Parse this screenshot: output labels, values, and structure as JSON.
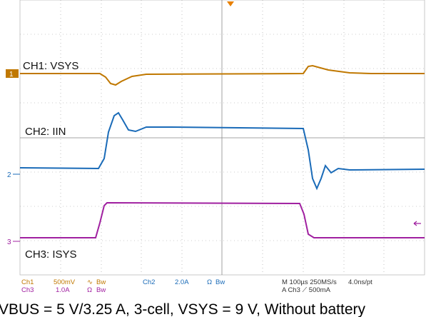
{
  "trace_labels": [
    "CH1: VSYS",
    "CH2: IIN",
    "CH3: ISYS"
  ],
  "channel_markers": [
    "1",
    "2",
    "3"
  ],
  "status": {
    "ch1": {
      "name": "Ch1",
      "scale": "500mV",
      "coupling": "∿",
      "bw": "Bw"
    },
    "ch2": {
      "name": "Ch2",
      "scale": "2.0A",
      "coupling": "Ω",
      "bw": "Bw"
    },
    "ch3": {
      "name": "Ch3",
      "scale": "1.0A",
      "coupling": "Ω",
      "bw": "Bw"
    },
    "timebase": "M 100µs 250MS/s",
    "resolution": "4.0ns/pt",
    "trigger": "A Ch3 ⟋ 500mA"
  },
  "caption": "VBUS = 5 V/3.25 A, 3-cell, VSYS = 9 V, Without battery"
}
